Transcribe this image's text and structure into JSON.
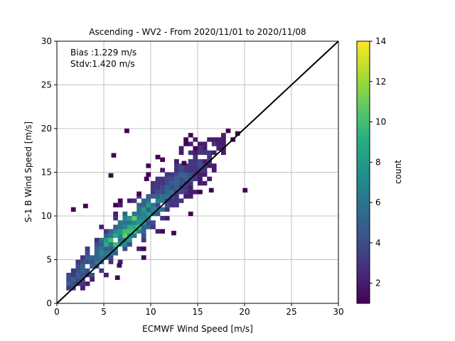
{
  "chart_data": {
    "type": "heatmap",
    "title": "Ascending - WV2 - From 2020/11/01 to 2020/11/08",
    "xlabel": "ECMWF Wind Speed [m/s]",
    "ylabel": "S-1 B Wind Speed [m/s]",
    "xlim": [
      0,
      30
    ],
    "ylim": [
      0,
      30
    ],
    "xticks": [
      "0",
      "5",
      "10",
      "15",
      "20",
      "25",
      "30"
    ],
    "yticks": [
      "0",
      "5",
      "10",
      "15",
      "20",
      "25",
      "30"
    ],
    "grid": true,
    "annotations": [
      "Bias :1.229 m/s",
      "Stdv:1.420 m/s"
    ],
    "reference_line": {
      "from": [
        0,
        0
      ],
      "to": [
        30,
        30
      ],
      "color": "#000000"
    },
    "bin_size": 0.5,
    "colorbar": {
      "label": "count",
      "min": 1,
      "max": 14,
      "ticks": [
        "2",
        "4",
        "6",
        "8",
        "10",
        "12",
        "14"
      ],
      "colormap": "viridis"
    },
    "density_model": {
      "ridge_slope": 1.0,
      "ridge_intercept": 1.229,
      "spread_sd": 1.42,
      "x_range_main": [
        0.8,
        17.5
      ],
      "peak_center": [
        7.0,
        8.2
      ]
    },
    "outlier_points": [
      {
        "x": 7.2,
        "y": 19.5
      },
      {
        "x": 5.8,
        "y": 16.7
      },
      {
        "x": 19.8,
        "y": 12.7
      },
      {
        "x": 18.0,
        "y": 19.5
      },
      {
        "x": 19.0,
        "y": 19.2
      },
      {
        "x": 18.5,
        "y": 18.5
      },
      {
        "x": 14.5,
        "y": 17.5
      },
      {
        "x": 11.0,
        "y": 16.2
      },
      {
        "x": 13.3,
        "y": 15.8
      },
      {
        "x": 5.5,
        "y": 14.4
      },
      {
        "x": 16.2,
        "y": 12.7
      },
      {
        "x": 9.3,
        "y": 14.0
      },
      {
        "x": 12.2,
        "y": 7.8
      },
      {
        "x": 6.4,
        "y": 4.1
      },
      {
        "x": 6.2,
        "y": 2.7
      },
      {
        "x": 1.5,
        "y": 10.5
      },
      {
        "x": 2.8,
        "y": 10.9
      },
      {
        "x": 8.5,
        "y": 12.3
      }
    ]
  }
}
